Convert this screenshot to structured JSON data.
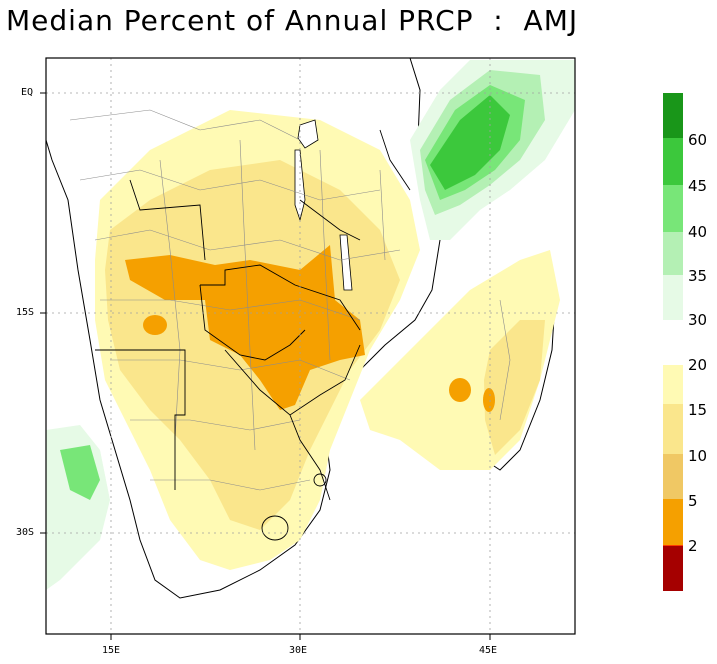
{
  "title": "Median Percent of Annual PRCP  :  AMJ",
  "axis": {
    "lat_labels": [
      "EQ",
      "15S",
      "30S"
    ],
    "lon_labels": [
      "15E",
      "30E",
      "45E"
    ]
  },
  "colorbar_upper": {
    "labels": [
      "60",
      "45",
      "40",
      "35",
      "30"
    ],
    "colors": [
      "#199619",
      "#3cc83c",
      "#78e678",
      "#b4f0b4",
      "#e6fae6"
    ]
  },
  "colorbar_lower": {
    "labels": [
      "20",
      "15",
      "10",
      "5",
      "2"
    ],
    "colors": [
      "#fffab4",
      "#fae68c",
      "#f0c864",
      "#f5a000",
      "#ff3c00",
      "#a50000"
    ]
  },
  "colors": {
    "ocean": "#ffffff",
    "border": "#000000",
    "admin": "#8c8c8c",
    "grid": "#a0a0a0"
  }
}
